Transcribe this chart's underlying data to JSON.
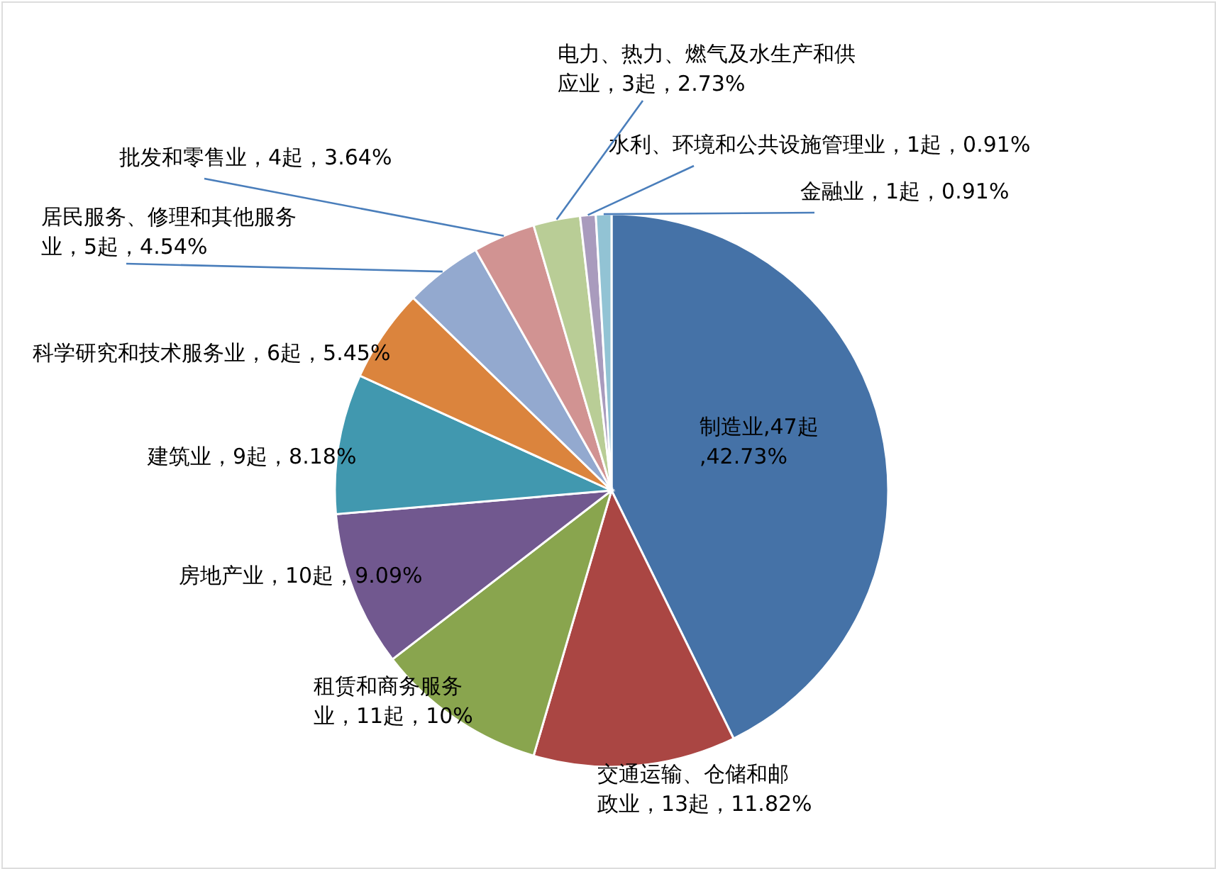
{
  "chart_data": {
    "type": "pie",
    "categories": [
      "制造业,47起,42.73%",
      "交通运输、仓储和邮政业，13起，11.82%",
      "租赁和商务服务业，11起，10%",
      "房地产业，10起，9.09%",
      "建筑业，9起，8.18%",
      "科学研究和技术服务业，6起，5.45%",
      "居民服务、修理和其他服务业，5起，4.54%",
      "批发和零售业，4起，3.64%",
      "电力、热力、燃气及水生产和供应业，3起，2.73%",
      "水利、环境和公共设施管理业，1起，0.91%",
      "金融业，1起，0.91%"
    ],
    "values": [
      47,
      13,
      11,
      10,
      9,
      6,
      5,
      4,
      3,
      1,
      1
    ],
    "colors": [
      "#4572a7",
      "#aa4643",
      "#89a54e",
      "#71588f",
      "#4198af",
      "#db843d",
      "#93a9cf",
      "#d19392",
      "#b9cd96",
      "#a99bbd",
      "#92c3d4"
    ]
  }
}
